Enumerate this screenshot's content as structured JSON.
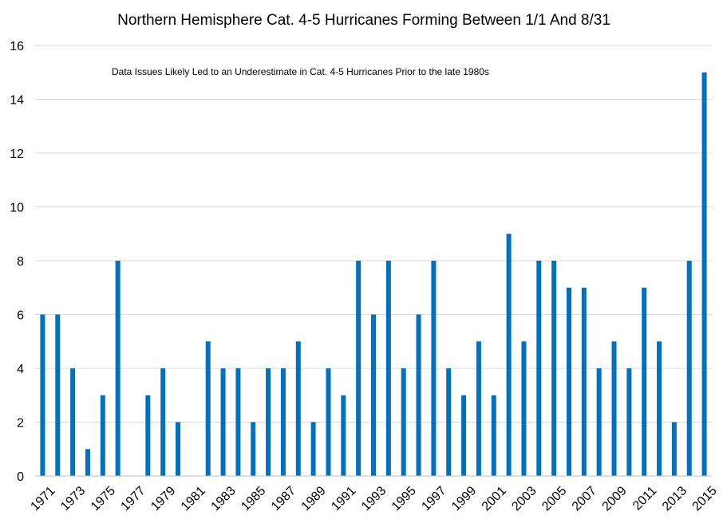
{
  "chart_data": {
    "type": "bar",
    "title": "Northern Hemisphere  Cat. 4-5 Hurricanes  Forming  Between  1/1 And  8/31",
    "annotation": "Data Issues Likely Led to an Underestimate in Cat. 4-5 Hurricanes Prior to the late 1980s",
    "xlabel": "",
    "ylabel": "",
    "ylim": [
      0,
      16
    ],
    "yticks": [
      "0",
      "2",
      "4",
      "6",
      "8",
      "10",
      "12",
      "14",
      "16"
    ],
    "grid": true,
    "bar_color": "#0070c0",
    "categories": [
      "1971",
      "1972",
      "1973",
      "1974",
      "1975",
      "1976",
      "1977",
      "1978",
      "1979",
      "1980",
      "1981",
      "1982",
      "1983",
      "1984",
      "1985",
      "1986",
      "1987",
      "1988",
      "1989",
      "1990",
      "1991",
      "1992",
      "1993",
      "1994",
      "1995",
      "1996",
      "1997",
      "1998",
      "1999",
      "2000",
      "2001",
      "2002",
      "2003",
      "2004",
      "2005",
      "2006",
      "2007",
      "2008",
      "2009",
      "2010",
      "2011",
      "2012",
      "2013",
      "2014",
      "2015"
    ],
    "x_tick_labels": [
      "1971",
      "1973",
      "1975",
      "1977",
      "1979",
      "1981",
      "1983",
      "1985",
      "1987",
      "1989",
      "1991",
      "1993",
      "1995",
      "1997",
      "1999",
      "2001",
      "2003",
      "2005",
      "2007",
      "2009",
      "2011",
      "2013",
      "2015"
    ],
    "values": [
      6,
      6,
      4,
      1,
      3,
      8,
      0,
      3,
      4,
      2,
      0,
      5,
      4,
      4,
      2,
      4,
      4,
      5,
      2,
      4,
      3,
      8,
      6,
      8,
      4,
      6,
      8,
      4,
      3,
      5,
      3,
      9,
      5,
      8,
      8,
      7,
      7,
      4,
      5,
      4,
      7,
      5,
      2,
      8,
      15
    ]
  }
}
